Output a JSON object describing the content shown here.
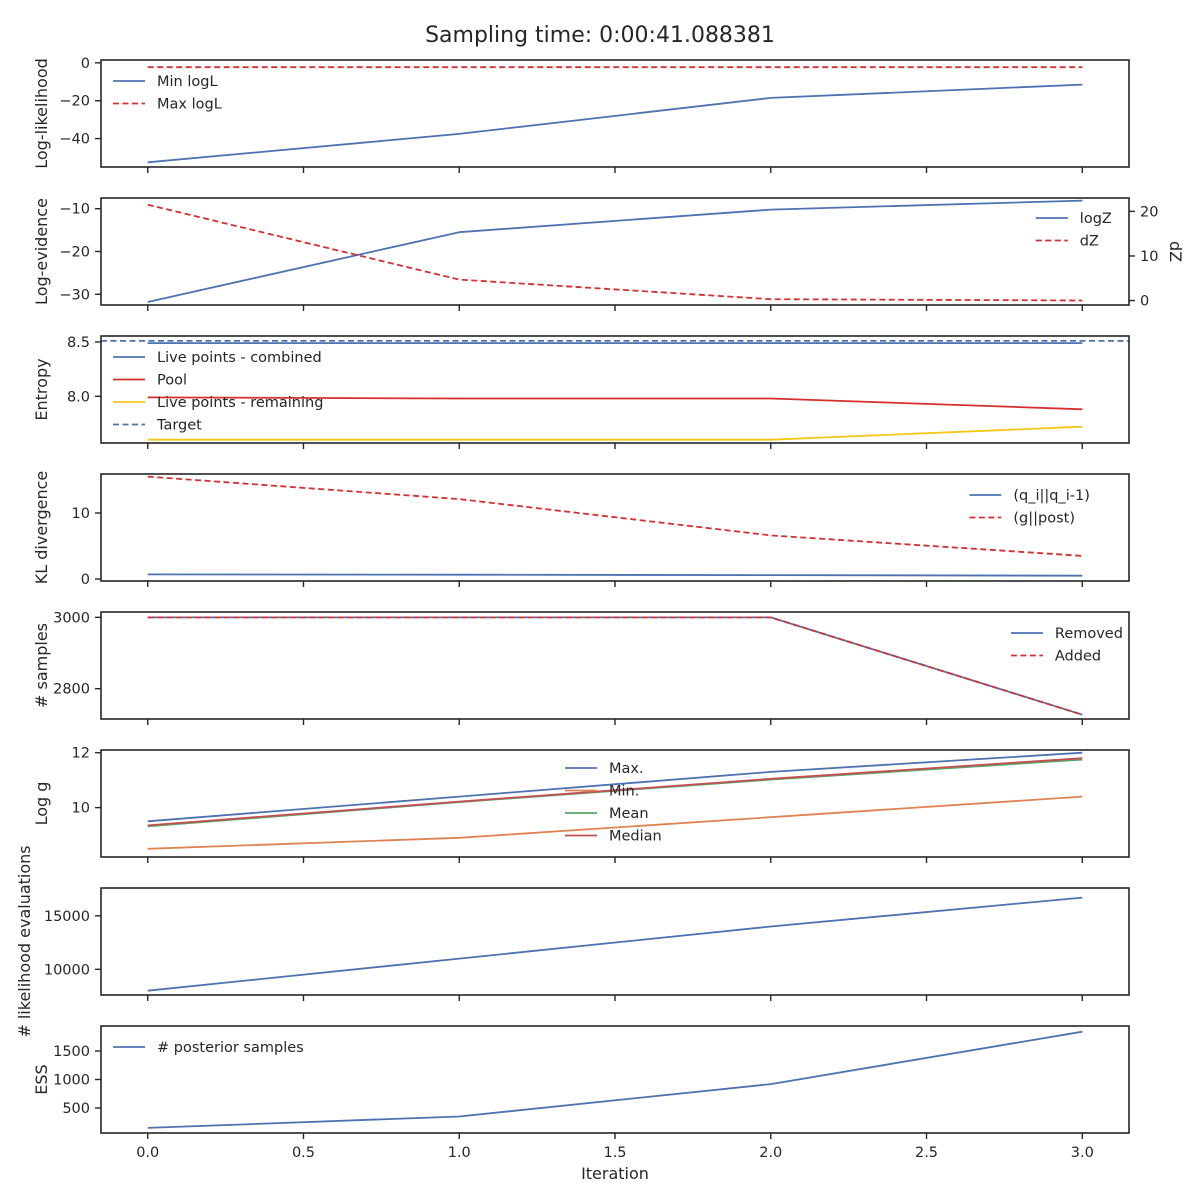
{
  "figure": {
    "title": "Sampling time: 0:00:41.088381"
  },
  "chart_data": {
    "type": "line",
    "xlabel": "Iteration",
    "x_ticks": [
      "0.0",
      "0.5",
      "1.0",
      "1.5",
      "2.0",
      "2.5",
      "3.0"
    ],
    "xlim": [
      -0.15,
      3.15
    ],
    "panels": [
      {
        "ylabel": "Log-likelihood",
        "ylim": [
          -55,
          1.5
        ],
        "y_ticks": [
          "0",
          "-20",
          "-40"
        ],
        "y_tick_values": [
          0,
          -20,
          -40
        ],
        "legend": "upper-left",
        "series": [
          {
            "name": "Min logL",
            "style": "solid",
            "color": "#4c72b0",
            "x": [
              0,
              1,
              2,
              3
            ],
            "values": [
              -52.5,
              -37.5,
              -18.5,
              -11.5
            ]
          },
          {
            "name": "Max logL",
            "style": "dashed",
            "color": "#d62f2f",
            "x": [
              0,
              1,
              2,
              3
            ],
            "values": [
              -2.3,
              -2.3,
              -2.3,
              -2.3
            ]
          }
        ]
      },
      {
        "ylabel": "Log-evidence",
        "ylim": [
          -32.5,
          -7.5
        ],
        "y_ticks": [
          "-10",
          "-20",
          "-30"
        ],
        "y_tick_values": [
          -10,
          -20,
          -30
        ],
        "right_axis": {
          "label": "dZ",
          "ylim": [
            -1,
            23
          ],
          "y_ticks": [
            "20",
            "10",
            "0"
          ],
          "y_tick_values": [
            20,
            10,
            0
          ]
        },
        "legend": "right",
        "series": [
          {
            "name": "logZ",
            "style": "solid",
            "color": "#4c72b0",
            "axis": "left",
            "x": [
              0,
              1,
              2,
              3
            ],
            "values": [
              -31.8,
              -15.5,
              -10.2,
              -8.1
            ]
          },
          {
            "name": "dZ",
            "style": "dashed",
            "color": "#d62f2f",
            "axis": "right",
            "x": [
              0,
              1,
              2,
              3
            ],
            "values": [
              21.5,
              4.7,
              0.3,
              0.0
            ]
          }
        ]
      },
      {
        "ylabel": "Entropy",
        "ylim": [
          7.57,
          8.555
        ],
        "y_ticks": [
          "8.5",
          "8.0"
        ],
        "y_tick_values": [
          8.5,
          8.0
        ],
        "legend": "upper-left",
        "series": [
          {
            "name": "Live points - combined",
            "style": "solid",
            "color": "#4c72b0",
            "x": [
              0,
              1,
              2,
              3
            ],
            "values": [
              8.49,
              8.49,
              8.49,
              8.49
            ]
          },
          {
            "name": "Pool",
            "style": "solid",
            "color": "#d62f2f",
            "x": [
              0,
              1,
              2,
              3
            ],
            "values": [
              7.99,
              7.98,
              7.98,
              7.88
            ]
          },
          {
            "name": "Live points - remaining",
            "style": "solid",
            "color": "#f5c518",
            "x": [
              0,
              1,
              2,
              3
            ],
            "values": [
              7.6,
              7.6,
              7.6,
              7.72
            ]
          },
          {
            "name": "Target",
            "style": "dashed",
            "color": "#4c72b0",
            "x": [
              -0.15,
              3.15
            ],
            "values": [
              8.51,
              8.51
            ]
          }
        ]
      },
      {
        "ylabel": "KL divergence",
        "ylim": [
          -0.3,
          15.9
        ],
        "y_ticks": [
          "10",
          "0"
        ],
        "y_tick_values": [
          10,
          0
        ],
        "legend": "upper-right",
        "series": [
          {
            "name": "(q_i||q_i-1)",
            "style": "solid",
            "color": "#4c72b0",
            "x": [
              0,
              1,
              2,
              3
            ],
            "values": [
              0.7,
              0.65,
              0.6,
              0.5
            ]
          },
          {
            "name": "(g||post)",
            "style": "dashed",
            "color": "#d62f2f",
            "x": [
              0,
              1,
              2,
              3
            ],
            "values": [
              15.5,
              12.1,
              6.6,
              3.5
            ]
          }
        ]
      },
      {
        "ylabel": "# samples",
        "ylim": [
          2715,
          3015
        ],
        "y_ticks": [
          "3000",
          "2800"
        ],
        "y_tick_values": [
          3000,
          2800
        ],
        "legend": "upper-right",
        "series": [
          {
            "name": "Removed",
            "style": "solid",
            "color": "#4c72b0",
            "x": [
              0,
              1,
              2,
              3
            ],
            "values": [
              3000,
              3000,
              3000,
              2727
            ]
          },
          {
            "name": "Added",
            "style": "dashed",
            "color": "#d62f2f",
            "x": [
              0,
              1,
              2,
              3
            ],
            "values": [
              3000,
              3000,
              3000,
              2727
            ]
          }
        ]
      },
      {
        "ylabel": "Log g",
        "ylim": [
          8.2,
          12.1
        ],
        "y_ticks": [
          "12",
          "10"
        ],
        "y_tick_values": [
          12,
          10
        ],
        "legend": "upper-center",
        "series": [
          {
            "name": "Max.",
            "style": "solid",
            "color": "#4c72b0",
            "x": [
              0,
              1,
              2,
              3
            ],
            "values": [
              9.5,
              10.4,
              11.3,
              12.0
            ]
          },
          {
            "name": "Min.",
            "style": "solid",
            "color": "#dd8452",
            "x": [
              0,
              1,
              2,
              3
            ],
            "values": [
              8.5,
              8.9,
              9.65,
              10.4
            ]
          },
          {
            "name": "Mean",
            "style": "solid",
            "color": "#55a868",
            "x": [
              0,
              1,
              2,
              3
            ],
            "values": [
              9.32,
              10.2,
              11.02,
              11.75
            ]
          },
          {
            "name": "Median",
            "style": "solid",
            "color": "#c44e52",
            "x": [
              0,
              1,
              2,
              3
            ],
            "values": [
              9.35,
              10.22,
              11.05,
              11.8
            ]
          }
        ]
      },
      {
        "ylabel": "# likelihood evaluations",
        "ylim": [
          7600,
          17600
        ],
        "y_ticks": [
          "15000",
          "10000"
        ],
        "y_tick_values": [
          15000,
          10000
        ],
        "legend": "none",
        "series": [
          {
            "name": "",
            "style": "solid",
            "color": "#4c72b0",
            "x": [
              0,
              1,
              2,
              3
            ],
            "values": [
              8000,
              11000,
              14000,
              16700
            ]
          }
        ]
      },
      {
        "ylabel": "ESS",
        "ylim": [
          60,
          1940
        ],
        "y_ticks": [
          "1500",
          "1000",
          "500"
        ],
        "y_tick_values": [
          1500,
          1000,
          500
        ],
        "legend": "upper-left",
        "series": [
          {
            "name": "# posterior samples",
            "style": "solid",
            "color": "#4c72b0",
            "x": [
              0,
              1,
              2,
              3
            ],
            "values": [
              150,
              350,
              920,
              1840
            ]
          }
        ]
      }
    ]
  }
}
